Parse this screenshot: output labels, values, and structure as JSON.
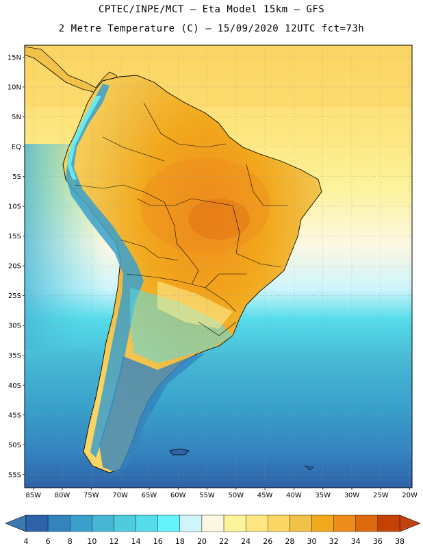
{
  "title": {
    "line1": "CPTEC/INPE/MCT –  Eta Model 15km – GFS",
    "line2": "2 Metre Temperature (C) – 15/09/2020 12UTC fct=73h"
  },
  "map": {
    "lat_labels": [
      "15N",
      "10N",
      "5N",
      "EQ",
      "5S",
      "10S",
      "15S",
      "20S",
      "25S",
      "30S",
      "35S",
      "40S",
      "45S",
      "50S",
      "55S"
    ],
    "lon_labels": [
      "85W",
      "80W",
      "75W",
      "70W",
      "65W",
      "60W",
      "55W",
      "50W",
      "45W",
      "40W",
      "35W",
      "30W",
      "25W",
      "20W"
    ]
  },
  "colorbar": {
    "levels": [
      "4",
      "6",
      "8",
      "10",
      "12",
      "14",
      "16",
      "18",
      "20",
      "22",
      "24",
      "26",
      "28",
      "30",
      "32",
      "34",
      "36",
      "38"
    ],
    "colors": [
      "#2e62a8",
      "#3383bf",
      "#39a0cb",
      "#46b6d4",
      "#4fcbe0",
      "#55dcea",
      "#66f2fa",
      "#cff5fb",
      "#fdf8e2",
      "#fcf39a",
      "#fde680",
      "#fbd664",
      "#f2c148",
      "#f2a81c",
      "#ee8c1c",
      "#de6a10",
      "#c44204"
    ],
    "low_color": "#3a78b4",
    "high_color": "#c0420e"
  }
}
